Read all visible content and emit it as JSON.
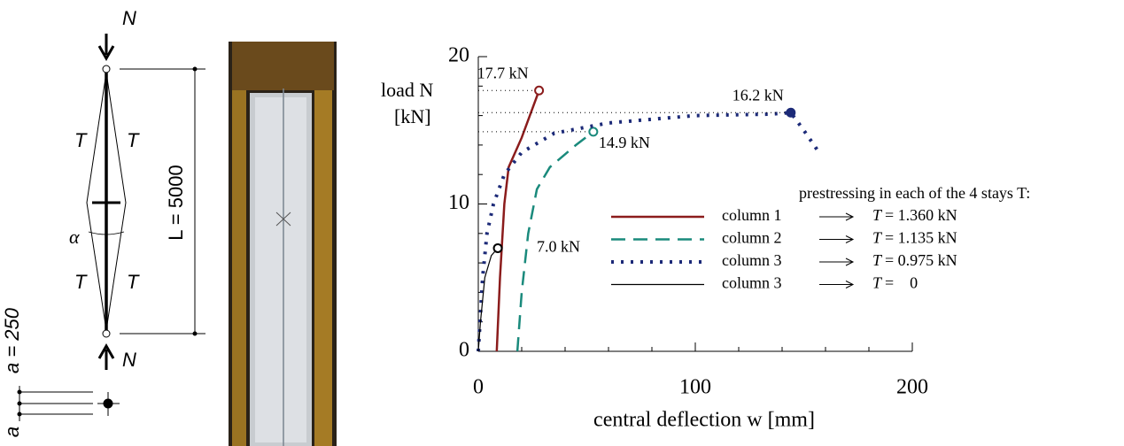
{
  "diagram": {
    "load_top": "N",
    "load_bottom": "N",
    "stays": [
      "T",
      "T",
      "T",
      "T"
    ],
    "length": "L = 5000",
    "angle": "α",
    "spacing": "a = 250",
    "spacing_symbol": "a"
  },
  "chart_data": {
    "type": "line",
    "y_label": [
      "load N",
      "[kN]"
    ],
    "x_label": "central deflection w [mm]",
    "xlim": [
      0,
      200
    ],
    "ylim": [
      0,
      20
    ],
    "xticks": [
      0,
      100,
      200
    ],
    "yticks": [
      0,
      10,
      20
    ],
    "xminorticks": [
      20,
      40,
      60,
      80,
      120,
      140,
      160,
      180
    ],
    "yminorticks": [
      2,
      4,
      6,
      8,
      12,
      14,
      16,
      18
    ],
    "legend_title": "prestressing in each of the 4 stays T:",
    "prestress_symbol": "T",
    "series": [
      {
        "name": "column 1",
        "color": "#8b1c1c",
        "style": "solid",
        "prestress": "= 1.360 kN",
        "peak_label": "17.7 kN",
        "x": [
          8.5,
          10,
          12,
          14,
          20,
          28
        ],
        "values": [
          0,
          5,
          10,
          12.5,
          14.5,
          17.7
        ]
      },
      {
        "name": "column 2",
        "color": "#1a8a7c",
        "style": "dashed",
        "prestress": "= 1.135 kN",
        "peak_label": "14.9 kN",
        "x": [
          18,
          20,
          23,
          27,
          33,
          45,
          53
        ],
        "values": [
          0,
          4,
          8,
          11,
          12.5,
          14,
          14.9
        ]
      },
      {
        "name": "column 3",
        "color": "#1c2a78",
        "style": "dotted",
        "prestress": "= 0.975 kN",
        "peak_label": "16.2 kN",
        "x": [
          0,
          2,
          4,
          7,
          12,
          20,
          35,
          60,
          100,
          135,
          144,
          150,
          157
        ],
        "values": [
          0,
          5,
          8,
          10,
          12,
          13.5,
          14.8,
          15.5,
          16,
          16.1,
          16.2,
          15,
          13.5
        ]
      },
      {
        "name": "column 3",
        "color": "#000000",
        "style": "thin",
        "prestress": "=    0",
        "peak_label": "7.0 kN",
        "x": [
          0,
          1,
          3,
          6,
          9
        ],
        "values": [
          0,
          2,
          5,
          6.5,
          7.0
        ]
      }
    ]
  }
}
